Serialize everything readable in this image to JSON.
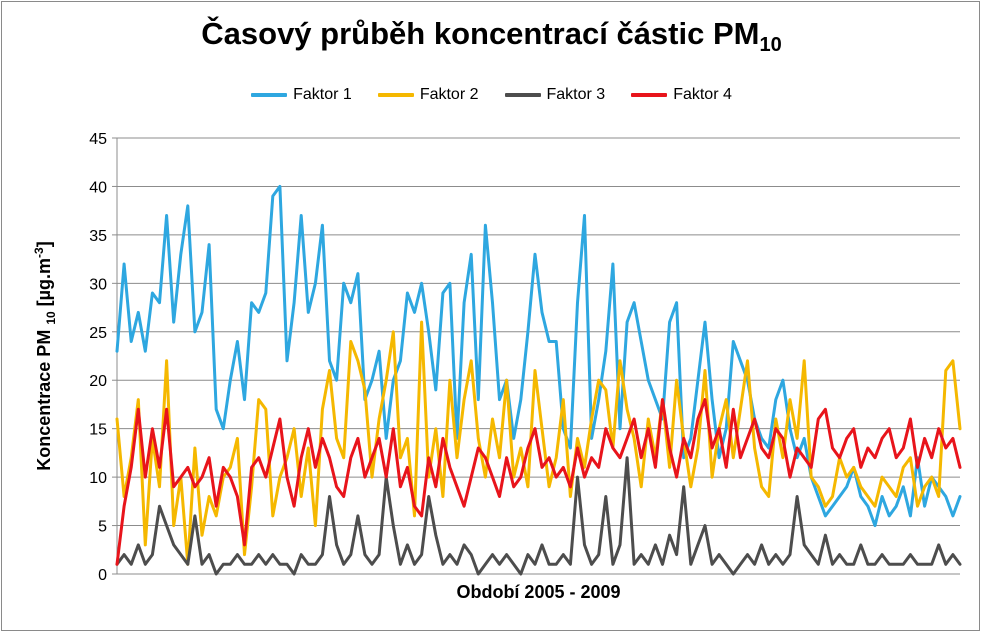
{
  "title": {
    "main": "Časový průběh koncentrací částic PM",
    "sub": "10"
  },
  "legend": {
    "items": [
      {
        "label": "Faktor 1",
        "color": "#2ea7e0"
      },
      {
        "label": "Faktor 2",
        "color": "#f5b800"
      },
      {
        "label": "Faktor 3",
        "color": "#4d4d4d"
      },
      {
        "label": "Faktor 4",
        "color": "#e8141b"
      }
    ]
  },
  "axes": {
    "ylabel_main": "Koncentrace PM ",
    "ylabel_sub": "10",
    "ylabel_unit": " [µg.m",
    "ylabel_sup": "-3",
    "ylabel_end": "]",
    "xlabel": "Období 2005 - 2009"
  },
  "chart_data": {
    "type": "line",
    "title": "Časový průběh koncentrací částic PM10",
    "xlabel": "Období 2005 - 2009",
    "ylabel": "Koncentrace PM 10 [µg.m-3]",
    "ylim": [
      0,
      45
    ],
    "yticks": [
      0,
      5,
      10,
      15,
      20,
      25,
      30,
      35,
      40,
      45
    ],
    "grid": true,
    "legend_position": "top",
    "x_count": 120,
    "series": [
      {
        "name": "Faktor 1",
        "color": "#2ea7e0",
        "values": [
          23,
          32,
          24,
          27,
          23,
          29,
          28,
          37,
          26,
          33,
          38,
          25,
          27,
          34,
          17,
          15,
          20,
          24,
          18,
          28,
          27,
          29,
          39,
          40,
          22,
          28,
          37,
          27,
          30,
          36,
          22,
          20,
          30,
          28,
          31,
          18,
          20,
          23,
          14,
          20,
          22,
          29,
          27,
          30,
          25,
          19,
          29,
          30,
          14,
          28,
          33,
          18,
          36,
          28,
          18,
          20,
          14,
          18,
          25,
          33,
          27,
          24,
          24,
          15,
          13,
          28,
          37,
          14,
          18,
          23,
          32,
          15,
          26,
          28,
          24,
          20,
          18,
          16,
          26,
          28,
          12,
          14,
          20,
          26,
          18,
          12,
          15,
          24,
          22,
          20,
          16,
          14,
          13,
          18,
          20,
          15,
          12,
          14,
          10,
          8,
          6,
          7,
          8,
          9,
          11,
          8,
          7,
          5,
          8,
          6,
          7,
          9,
          6,
          12,
          7,
          10,
          9,
          8,
          6,
          8
        ]
      },
      {
        "name": "Faktor 2",
        "color": "#f5b800",
        "values": [
          16,
          8,
          12,
          18,
          3,
          14,
          9,
          22,
          5,
          10,
          1,
          13,
          4,
          8,
          6,
          10,
          11,
          14,
          2,
          9,
          18,
          17,
          6,
          10,
          12,
          15,
          8,
          13,
          5,
          17,
          21,
          14,
          12,
          24,
          22,
          19,
          10,
          16,
          20,
          25,
          12,
          14,
          6,
          26,
          10,
          15,
          8,
          20,
          12,
          18,
          22,
          14,
          10,
          16,
          12,
          20,
          10,
          13,
          9,
          21,
          15,
          9,
          12,
          18,
          8,
          14,
          11,
          16,
          20,
          19,
          13,
          22,
          17,
          14,
          9,
          16,
          12,
          18,
          11,
          20,
          14,
          9,
          13,
          21,
          10,
          15,
          18,
          12,
          17,
          22,
          13,
          9,
          8,
          16,
          12,
          18,
          14,
          22,
          10,
          9,
          7,
          8,
          12,
          10,
          11,
          9,
          8,
          7,
          10,
          9,
          8,
          11,
          12,
          7,
          9,
          10,
          8,
          21,
          22,
          15
        ]
      },
      {
        "name": "Faktor 3",
        "color": "#4d4d4d",
        "values": [
          1,
          2,
          1,
          3,
          1,
          2,
          7,
          5,
          3,
          2,
          1,
          6,
          1,
          2,
          0,
          1,
          1,
          2,
          1,
          1,
          2,
          1,
          2,
          1,
          1,
          0,
          2,
          1,
          1,
          2,
          8,
          3,
          1,
          2,
          6,
          2,
          1,
          2,
          10,
          5,
          1,
          3,
          1,
          2,
          8,
          4,
          1,
          2,
          1,
          3,
          2,
          0,
          1,
          2,
          1,
          2,
          1,
          0,
          2,
          1,
          3,
          1,
          1,
          2,
          1,
          10,
          3,
          1,
          2,
          8,
          1,
          3,
          12,
          1,
          2,
          1,
          3,
          1,
          4,
          2,
          9,
          1,
          3,
          5,
          1,
          2,
          1,
          0,
          1,
          2,
          1,
          3,
          1,
          2,
          1,
          2,
          8,
          3,
          2,
          1,
          4,
          1,
          2,
          1,
          1,
          3,
          1,
          1,
          2,
          1,
          1,
          1,
          2,
          1,
          1,
          1,
          3,
          1,
          2,
          1
        ]
      },
      {
        "name": "Faktor 4",
        "color": "#e8141b",
        "values": [
          1,
          7,
          11,
          17,
          10,
          15,
          11,
          17,
          9,
          10,
          11,
          9,
          10,
          12,
          7,
          11,
          10,
          8,
          3,
          11,
          12,
          10,
          13,
          16,
          10,
          7,
          12,
          15,
          11,
          14,
          12,
          9,
          8,
          12,
          14,
          10,
          12,
          14,
          10,
          15,
          9,
          11,
          7,
          6,
          12,
          9,
          14,
          11,
          9,
          7,
          10,
          13,
          12,
          10,
          8,
          12,
          9,
          10,
          13,
          15,
          11,
          12,
          10,
          11,
          9,
          13,
          10,
          12,
          11,
          15,
          13,
          12,
          14,
          16,
          12,
          15,
          11,
          18,
          13,
          10,
          14,
          12,
          16,
          18,
          13,
          15,
          11,
          17,
          12,
          14,
          16,
          13,
          12,
          15,
          14,
          10,
          13,
          12,
          11,
          16,
          17,
          13,
          12,
          14,
          15,
          11,
          13,
          12,
          14,
          15,
          12,
          13,
          16,
          11,
          14,
          12,
          15,
          13,
          14,
          11
        ]
      }
    ]
  }
}
